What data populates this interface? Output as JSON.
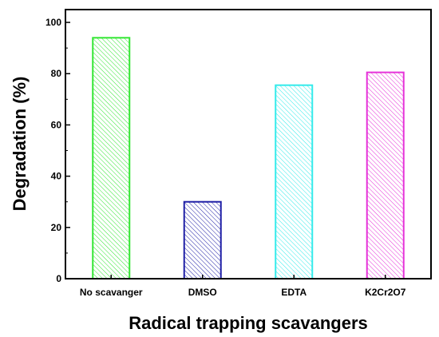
{
  "chart_data": {
    "type": "bar",
    "title": "",
    "xlabel": "Radical trapping scavangers",
    "ylabel": "Degradation (%)",
    "categories": [
      "No scavanger",
      "DMSO",
      "EDTA",
      "K2Cr2O7"
    ],
    "values": [
      94,
      30,
      75.5,
      80.5
    ],
    "colors": [
      "#33e633",
      "#1f1fa6",
      "#33ebeb",
      "#e633d9"
    ],
    "ylim": [
      0,
      105
    ],
    "yticks": [
      0,
      20,
      40,
      60,
      80,
      100
    ],
    "ytick_labels": [
      "0",
      "20",
      "40",
      "60",
      "80",
      "100"
    ],
    "grid": false,
    "pattern": "hatched"
  }
}
